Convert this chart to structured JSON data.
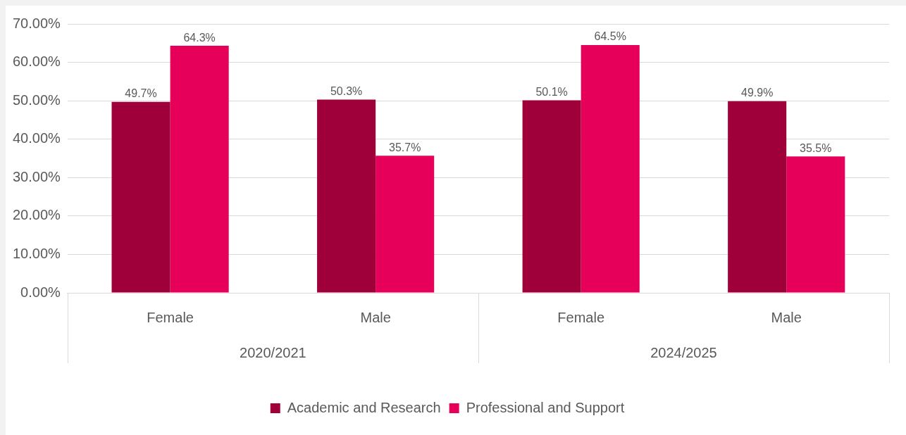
{
  "chart_data": {
    "type": "bar",
    "categories": [
      "Female",
      "Male",
      "Female",
      "Male"
    ],
    "series": [
      {
        "name": "Academic and Research",
        "color": "#a0003a",
        "values": [
          49.7,
          50.3,
          50.1,
          49.9
        ],
        "value_labels": [
          "49.7%",
          "50.3%",
          "50.1%",
          "49.9%"
        ]
      },
      {
        "name": "Professional and Support",
        "color": "#e6005a",
        "values": [
          64.3,
          35.7,
          64.5,
          35.5
        ],
        "value_labels": [
          "64.3%",
          "35.7%",
          "64.5%",
          "35.5%"
        ]
      }
    ],
    "ylim": [
      0,
      70
    ],
    "yticks": [
      {
        "value": 0,
        "label": "0.00%"
      },
      {
        "value": 10,
        "label": "10.00%"
      },
      {
        "value": 20,
        "label": "20.00%"
      },
      {
        "value": 30,
        "label": "30.00%"
      },
      {
        "value": 40,
        "label": "40.00%"
      },
      {
        "value": 50,
        "label": "50.00%"
      },
      {
        "value": 60,
        "label": "60.00%"
      },
      {
        "value": 70,
        "label": "70.00%"
      }
    ],
    "annotations": [
      "2020/2021",
      "2024/2025"
    ],
    "grid": "y",
    "legend": "bottom"
  }
}
